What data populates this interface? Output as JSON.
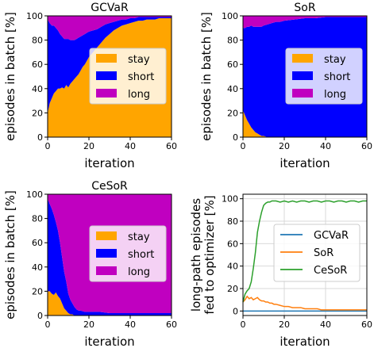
{
  "colors": {
    "stay": "#ffa500",
    "short": "#0000ff",
    "long": "#c000c0",
    "gcvar_line": "#1f77b4",
    "sor_line": "#ff7f0e",
    "cesor_line": "#2ca02c",
    "frame": "#000000",
    "grid": "#d9d9d9"
  },
  "chart_data": [
    {
      "type": "area",
      "title": "GCVaR",
      "xlabel": "iteration",
      "ylabel": "episodes in batch [%]",
      "xlim": [
        0,
        60
      ],
      "ylim": [
        0,
        100
      ],
      "xticks": [
        0,
        20,
        40,
        60
      ],
      "yticks": [
        0,
        20,
        40,
        60,
        80,
        100
      ],
      "stacked": true,
      "legend_position": "right",
      "x": [
        0,
        1,
        2,
        3,
        4,
        5,
        6,
        7,
        8,
        9,
        10,
        11,
        12,
        13,
        14,
        15,
        16,
        17,
        18,
        19,
        20,
        22,
        24,
        26,
        28,
        30,
        32,
        34,
        36,
        38,
        40,
        42,
        44,
        46,
        48,
        50,
        52,
        54,
        56,
        58,
        60
      ],
      "series": [
        {
          "name": "stay",
          "values": [
            20,
            28,
            32,
            36,
            38,
            40,
            40,
            41,
            40,
            43,
            41,
            44,
            46,
            48,
            50,
            52,
            55,
            58,
            60,
            63,
            66,
            70,
            74,
            78,
            82,
            85,
            88,
            90,
            92,
            93,
            94,
            95,
            96,
            96,
            97,
            97,
            97,
            98,
            98,
            98,
            98
          ]
        },
        {
          "name": "short",
          "values": [
            77,
            66,
            60,
            56,
            52,
            48,
            45,
            42,
            41,
            38,
            40,
            36,
            34,
            32,
            31,
            30,
            28,
            26,
            25,
            23,
            21,
            18,
            15,
            13,
            11,
            9,
            7,
            6,
            5,
            4,
            4,
            3,
            3,
            3,
            2,
            2,
            2,
            1,
            1,
            1,
            1
          ]
        },
        {
          "name": "long",
          "values": [
            3,
            6,
            8,
            8,
            10,
            12,
            15,
            17,
            19,
            19,
            19,
            20,
            20,
            20,
            19,
            18,
            17,
            16,
            15,
            14,
            13,
            12,
            11,
            9,
            7,
            6,
            5,
            4,
            3,
            3,
            2,
            2,
            1,
            1,
            1,
            1,
            1,
            1,
            1,
            1,
            1
          ]
        }
      ]
    },
    {
      "type": "area",
      "title": "SoR",
      "xlabel": "iteration",
      "ylabel": "episodes in batch [%]",
      "xlim": [
        0,
        60
      ],
      "ylim": [
        0,
        100
      ],
      "xticks": [
        0,
        20,
        40,
        60
      ],
      "yticks": [
        0,
        20,
        40,
        60,
        80,
        100
      ],
      "stacked": true,
      "legend_position": "right",
      "x": [
        0,
        1,
        2,
        3,
        4,
        5,
        6,
        7,
        8,
        9,
        10,
        12,
        14,
        16,
        18,
        20,
        25,
        30,
        35,
        40,
        45,
        50,
        55,
        60
      ],
      "series": [
        {
          "name": "stay",
          "values": [
            22,
            18,
            14,
            11,
            8,
            6,
            4,
            3,
            2,
            1,
            1,
            0,
            0,
            0,
            0,
            0,
            0,
            0,
            0,
            0,
            0,
            0,
            0,
            0
          ]
        },
        {
          "name": "short",
          "values": [
            68,
            72,
            77,
            80,
            84,
            85,
            87,
            88,
            89,
            90,
            91,
            93,
            94,
            95,
            95,
            96,
            97,
            98,
            98,
            99,
            99,
            99,
            99,
            99
          ]
        },
        {
          "name": "long",
          "values": [
            10,
            10,
            9,
            9,
            8,
            9,
            9,
            9,
            9,
            9,
            8,
            7,
            6,
            5,
            5,
            4,
            3,
            2,
            2,
            1,
            1,
            1,
            1,
            1
          ]
        }
      ]
    },
    {
      "type": "area",
      "title": "CeSoR",
      "xlabel": "iteration",
      "ylabel": "episodes in batch [%]",
      "xlim": [
        0,
        60
      ],
      "ylim": [
        0,
        100
      ],
      "xticks": [
        0,
        20,
        40,
        60
      ],
      "yticks": [
        0,
        20,
        40,
        60,
        80,
        100
      ],
      "stacked": true,
      "legend_position": "right",
      "x": [
        0,
        1,
        2,
        3,
        4,
        5,
        6,
        7,
        8,
        9,
        10,
        11,
        12,
        13,
        14,
        15,
        16,
        18,
        20,
        25,
        30,
        35,
        40,
        45,
        50,
        55,
        60
      ],
      "series": [
        {
          "name": "stay",
          "values": [
            20,
            20,
            18,
            17,
            19,
            16,
            14,
            10,
            6,
            4,
            2,
            1,
            1,
            0,
            0,
            0,
            0,
            0,
            0,
            0,
            0,
            0,
            0,
            0,
            0,
            0,
            0
          ]
        },
        {
          "name": "short",
          "values": [
            76,
            72,
            70,
            66,
            58,
            54,
            46,
            38,
            30,
            24,
            16,
            12,
            9,
            7,
            5,
            4,
            4,
            3,
            3,
            3,
            2,
            2,
            2,
            2,
            2,
            2,
            2
          ]
        },
        {
          "name": "long",
          "values": [
            4,
            8,
            12,
            17,
            23,
            30,
            40,
            52,
            64,
            72,
            82,
            87,
            90,
            93,
            95,
            96,
            96,
            97,
            97,
            97,
            98,
            98,
            98,
            98,
            98,
            98,
            98
          ]
        }
      ]
    },
    {
      "type": "line",
      "title": "",
      "xlabel": "iteration",
      "ylabel": "long-path episodes fed to optimizer [%]",
      "xlim": [
        0,
        60
      ],
      "ylim": [
        -4,
        104
      ],
      "xticks": [
        0,
        20,
        40,
        60
      ],
      "yticks": [
        0,
        20,
        40,
        60,
        80,
        100
      ],
      "grid": true,
      "legend_position": "center-right",
      "x": [
        0,
        1,
        2,
        3,
        4,
        5,
        6,
        7,
        8,
        9,
        10,
        11,
        12,
        13,
        14,
        15,
        16,
        18,
        20,
        22,
        24,
        26,
        28,
        30,
        32,
        34,
        36,
        38,
        40,
        42,
        44,
        46,
        48,
        50,
        52,
        54,
        56,
        58,
        60
      ],
      "series": [
        {
          "name": "GCVaR",
          "values": [
            0,
            0,
            0,
            0,
            0,
            0,
            0,
            0,
            0,
            0,
            0,
            0,
            0,
            0,
            0,
            0,
            0,
            0,
            0,
            0,
            0,
            0,
            0,
            0,
            0,
            0,
            0,
            0,
            0,
            0,
            0,
            0,
            0,
            0,
            0,
            0,
            0,
            0,
            0
          ]
        },
        {
          "name": "SoR",
          "values": [
            8,
            10,
            13,
            11,
            12,
            10,
            11,
            12,
            10,
            9,
            9,
            8,
            8,
            7,
            7,
            6,
            6,
            5,
            4,
            4,
            3,
            3,
            3,
            2,
            2,
            2,
            2,
            1,
            1,
            1,
            1,
            1,
            1,
            1,
            1,
            1,
            1,
            1,
            1
          ]
        },
        {
          "name": "CeSoR",
          "values": [
            8,
            15,
            18,
            20,
            26,
            38,
            52,
            70,
            80,
            88,
            94,
            96,
            97,
            97,
            98,
            98,
            98,
            97,
            98,
            97,
            98,
            97,
            98,
            98,
            97,
            98,
            98,
            97,
            98,
            98,
            97,
            98,
            98,
            97,
            98,
            98,
            97,
            98,
            98
          ]
        }
      ]
    }
  ]
}
